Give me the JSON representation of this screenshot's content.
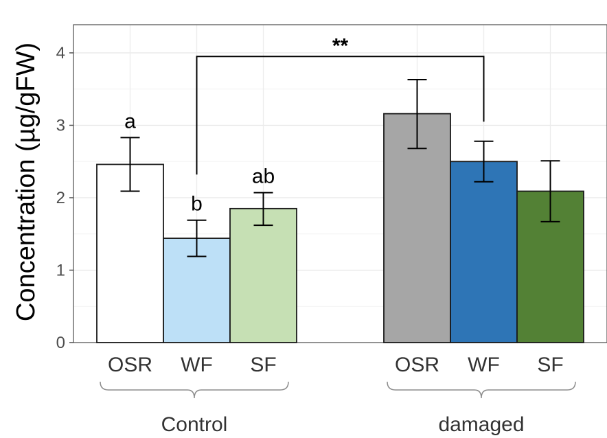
{
  "chart_data": {
    "type": "bar",
    "ylabel": "Concentration (µg/gFW)",
    "ylim": [
      0,
      4.4
    ],
    "yticks": [
      0,
      1,
      2,
      3,
      4
    ],
    "grid": true,
    "groups": [
      {
        "name": "Control",
        "bars": [
          {
            "category": "OSR",
            "value": 2.46,
            "err_low": 2.09,
            "err_high": 2.83,
            "color": "#ffffff",
            "letter": "a"
          },
          {
            "category": "WF",
            "value": 1.44,
            "err_low": 1.19,
            "err_high": 1.69,
            "color": "#bde0f7",
            "letter": "b"
          },
          {
            "category": "SF",
            "value": 1.85,
            "err_low": 1.62,
            "err_high": 2.07,
            "color": "#c6e0b4",
            "letter": "ab"
          }
        ]
      },
      {
        "name": "damaged",
        "bars": [
          {
            "category": "OSR",
            "value": 3.16,
            "err_low": 2.68,
            "err_high": 3.63,
            "color": "#a6a6a6",
            "letter": ""
          },
          {
            "category": "WF",
            "value": 2.5,
            "err_low": 2.22,
            "err_high": 2.78,
            "color": "#2e75b6",
            "letter": ""
          },
          {
            "category": "SF",
            "value": 2.09,
            "err_low": 1.67,
            "err_high": 2.51,
            "color": "#538135",
            "letter": ""
          }
        ]
      }
    ],
    "significance": {
      "label": "**",
      "from": "Control-WF",
      "to": "damaged-WF",
      "level": 3.95
    }
  }
}
